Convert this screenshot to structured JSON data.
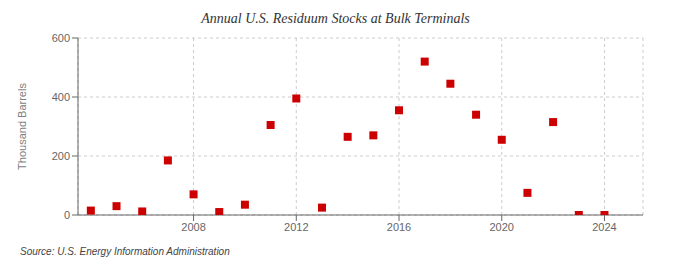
{
  "chart_data": {
    "type": "scatter",
    "title": "Annual U.S. Residuum Stocks at Bulk Terminals",
    "ylabel": "Thousand Barrels",
    "annotations": [
      "Source: U.S. Energy Information Administration"
    ],
    "x": [
      2004,
      2005,
      2006,
      2007,
      2008,
      2009,
      2010,
      2011,
      2012,
      2013,
      2014,
      2015,
      2016,
      2017,
      2018,
      2019,
      2020,
      2021,
      2022,
      2023,
      2024
    ],
    "values": [
      15,
      30,
      12,
      185,
      70,
      10,
      35,
      305,
      395,
      25,
      265,
      270,
      355,
      520,
      445,
      340,
      255,
      75,
      315,
      0,
      0
    ],
    "color": "#cc0000",
    "marker": "square",
    "xlim": [
      2003.5,
      2025.5
    ],
    "xticks": [
      2008,
      2012,
      2016,
      2020,
      2024
    ],
    "ylim": [
      0,
      600
    ],
    "yticks": [
      0,
      200,
      400,
      600
    ],
    "grid": true
  }
}
